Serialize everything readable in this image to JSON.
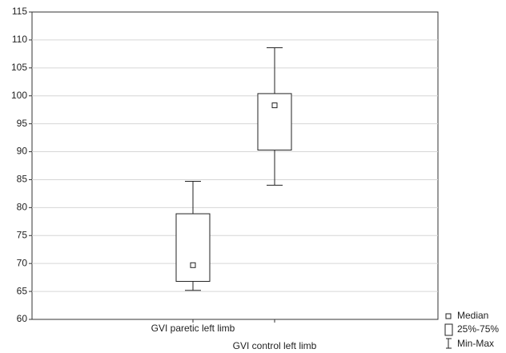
{
  "chart_data": {
    "type": "box",
    "categories": [
      "GVI paretic left limb",
      "GVI control left limb"
    ],
    "min": [
      65.2,
      84
    ],
    "q1": [
      66.8,
      90.3
    ],
    "median": [
      69.7,
      98.3
    ],
    "q3": [
      78.9,
      100.4
    ],
    "max": [
      84.7,
      108.6
    ],
    "ylim": [
      60,
      115
    ],
    "yticks": [
      60,
      65,
      70,
      75,
      80,
      85,
      90,
      95,
      100,
      105,
      110,
      115
    ],
    "grid": true,
    "legend": [
      "Median",
      "25%-75%",
      "Min-Max"
    ]
  }
}
